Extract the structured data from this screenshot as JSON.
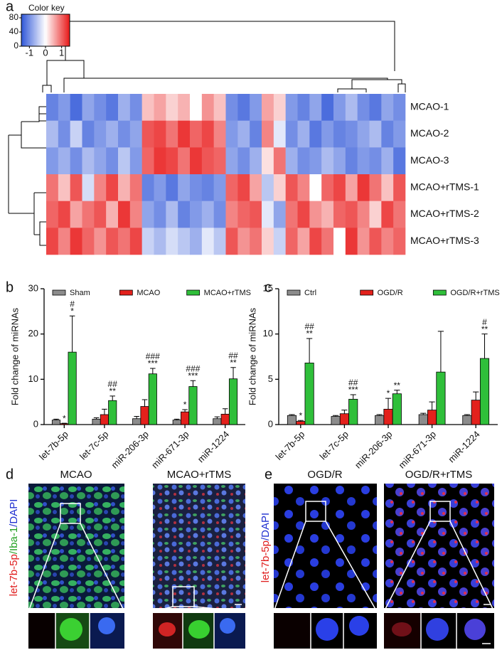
{
  "panel_labels": [
    "a",
    "b",
    "c",
    "d",
    "e"
  ],
  "chart_data": [
    {
      "type": "heatmap",
      "rows": [
        "MCAO-1",
        "MCAO-2",
        "MCAO-3",
        "MCAO+rTMS-1",
        "MCAO+rTMS-2",
        "MCAO+rTMS-3"
      ],
      "values": [
        [
          -1.1,
          -0.9,
          -1.3,
          -0.8,
          -1.0,
          -1.2,
          -0.7,
          -1.0,
          0.4,
          0.6,
          0.3,
          0.5,
          0.0,
          0.7,
          0.4,
          -1.0,
          -1.2,
          -0.9,
          0.6,
          0.3,
          -0.9,
          -1.1,
          -0.8,
          -1.3,
          -0.9,
          -0.6,
          -1.0,
          -1.2,
          -0.8,
          -1.0
        ],
        [
          -0.6,
          -1.0,
          -0.4,
          -1.1,
          -0.9,
          -0.7,
          -1.0,
          -0.8,
          1.1,
          1.2,
          0.9,
          1.3,
          1.0,
          1.2,
          0.8,
          -0.9,
          -0.7,
          -1.1,
          0.8,
          -0.2,
          -1.0,
          -0.7,
          -1.2,
          -0.9,
          -1.1,
          -1.0,
          -0.8,
          -0.6,
          -1.1,
          -0.9
        ],
        [
          -0.9,
          -0.7,
          -1.0,
          -0.6,
          -0.8,
          -1.0,
          -0.5,
          -0.9,
          1.0,
          1.3,
          1.2,
          0.9,
          1.3,
          1.1,
          1.0,
          -0.8,
          -1.0,
          -0.7,
          0.2,
          0.9,
          -0.7,
          -1.0,
          -0.9,
          -0.6,
          -0.8,
          -1.1,
          -0.9,
          -1.0,
          -0.7,
          -1.2
        ],
        [
          0.9,
          0.4,
          1.1,
          -0.3,
          0.8,
          1.2,
          0.5,
          0.9,
          -1.1,
          -0.9,
          -1.2,
          -0.8,
          -1.0,
          -1.1,
          -0.9,
          1.0,
          1.2,
          0.6,
          -0.5,
          0.3,
          1.1,
          0.8,
          0.0,
          1.0,
          1.2,
          0.6,
          1.3,
          0.9,
          0.4,
          1.1
        ],
        [
          1.0,
          1.2,
          0.6,
          0.9,
          1.1,
          0.5,
          1.3,
          0.8,
          -0.8,
          -1.0,
          -0.6,
          -1.1,
          -0.9,
          -0.7,
          -1.0,
          0.8,
          1.0,
          1.1,
          -0.2,
          -0.8,
          0.9,
          1.2,
          0.7,
          0.5,
          1.0,
          1.1,
          0.8,
          0.3,
          1.2,
          0.9
        ],
        [
          1.2,
          0.8,
          1.3,
          1.0,
          0.7,
          1.1,
          0.9,
          1.2,
          -0.4,
          -0.6,
          -0.3,
          -0.5,
          -0.7,
          -0.2,
          -0.5,
          1.1,
          0.7,
          0.9,
          0.3,
          -0.4,
          1.0,
          0.6,
          1.2,
          0.9,
          0.0,
          1.3,
          0.7,
          1.1,
          0.8,
          1.0
        ]
      ],
      "clim": [
        -1.5,
        1.5
      ],
      "low_color": "#2f56d8",
      "high_color": "#e81818",
      "color_key": {
        "title": "Color key",
        "xticks": [
          -1,
          0,
          1
        ],
        "ylim": [
          0,
          90
        ],
        "yticks": [
          0,
          40,
          80
        ]
      }
    },
    {
      "type": "bar",
      "ylabel": "Fold change of miRNAs",
      "categories": [
        "let-7b-5p",
        "let-7c-5p",
        "miR-206-3p",
        "miR-671-3p",
        "miR-1224"
      ],
      "series": [
        {
          "name": "Sham",
          "color": "#8c8c8c",
          "values": [
            1.0,
            1.2,
            1.3,
            1.0,
            1.3
          ],
          "errors": [
            0.2,
            0.3,
            0.5,
            0.2,
            0.4
          ],
          "significance": [
            null,
            null,
            null,
            null,
            null
          ]
        },
        {
          "name": "MCAO",
          "color": "#e3211c",
          "values": [
            0.2,
            2.2,
            4.0,
            2.8,
            2.3
          ],
          "errors": [
            0.1,
            1.2,
            1.5,
            0.5,
            1.2
          ],
          "significance": [
            [
              "*"
            ],
            null,
            null,
            [
              "*"
            ],
            null
          ]
        },
        {
          "name": "MCAO+rTMS",
          "color": "#2fbf3a",
          "values": [
            16.0,
            5.3,
            11.2,
            8.4,
            10.1
          ],
          "errors": [
            8.0,
            1.0,
            1.2,
            1.3,
            2.5
          ],
          "significance": [
            [
              "#",
              "*"
            ],
            [
              "##",
              "**"
            ],
            [
              "###",
              "***"
            ],
            [
              "###",
              "***"
            ],
            [
              "##",
              "**"
            ]
          ]
        }
      ],
      "ylim": [
        0,
        30
      ],
      "yticks": [
        0,
        10,
        20,
        30
      ],
      "legend": "top"
    },
    {
      "type": "bar",
      "ylabel": "Fold change of miRNAs",
      "categories": [
        "let-7b-5p",
        "let-7c-5p",
        "miR-206-3p",
        "miR-671-3p",
        "miR-1224"
      ],
      "series": [
        {
          "name": "Ctrl",
          "color": "#8c8c8c",
          "values": [
            1.0,
            0.9,
            1.0,
            1.1,
            1.0
          ],
          "errors": [
            0.1,
            0.1,
            0.1,
            0.15,
            0.1
          ],
          "significance": [
            null,
            null,
            null,
            null,
            null
          ]
        },
        {
          "name": "OGD/R",
          "color": "#e3211c",
          "values": [
            0.35,
            1.2,
            1.7,
            1.6,
            2.7
          ],
          "errors": [
            0.1,
            0.4,
            1.2,
            0.9,
            0.9
          ],
          "significance": [
            [
              "*"
            ],
            null,
            [
              "*"
            ],
            null,
            null
          ]
        },
        {
          "name": "OGD/R+rTMS",
          "color": "#2fbf3a",
          "values": [
            6.8,
            2.8,
            3.4,
            5.8,
            7.3
          ],
          "errors": [
            2.7,
            0.5,
            0.4,
            4.5,
            2.7
          ],
          "significance": [
            [
              "##",
              "**"
            ],
            [
              "##",
              "***"
            ],
            [
              "**"
            ],
            null,
            [
              "#",
              "**"
            ]
          ]
        }
      ],
      "ylim": [
        0,
        15
      ],
      "yticks": [
        0,
        5,
        10,
        15
      ],
      "legend": "top"
    }
  ],
  "micrographs": {
    "d": {
      "headers": [
        "MCAO",
        "MCAO+rTMS"
      ],
      "stain": [
        {
          "text": "let-7b-5p",
          "color": "#e02020"
        },
        {
          "text": "/Iba-1",
          "color": "#22a022"
        },
        {
          "text": "/DAPI",
          "color": "#2030d0"
        }
      ]
    },
    "e": {
      "headers": [
        "OGD/R",
        "OGD/R+rTMS"
      ],
      "stain": [
        {
          "text": "let-7b-5p",
          "color": "#e02020"
        },
        {
          "text": "/DAPI",
          "color": "#2030d0"
        }
      ]
    }
  }
}
